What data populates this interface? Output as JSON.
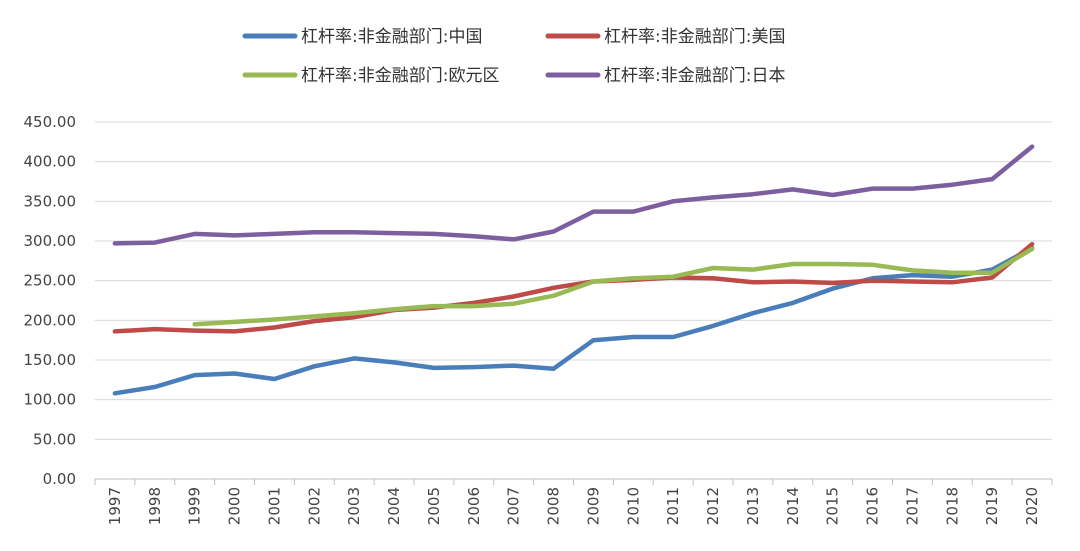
{
  "chart_data": {
    "type": "line",
    "title": "",
    "xlabel": "",
    "ylabel": "",
    "ylim": [
      0,
      450
    ],
    "yticks": [
      "0.00",
      "50.00",
      "100.00",
      "150.00",
      "200.00",
      "250.00",
      "300.00",
      "350.00",
      "400.00",
      "450.00"
    ],
    "grid": "horizontal",
    "legend_position": "top",
    "categories": [
      "1997",
      "1998",
      "1999",
      "2000",
      "2001",
      "2002",
      "2003",
      "2004",
      "2005",
      "2006",
      "2007",
      "2008",
      "2009",
      "2010",
      "2011",
      "2012",
      "2013",
      "2014",
      "2015",
      "2016",
      "2017",
      "2018",
      "2019",
      "2020"
    ],
    "series": [
      {
        "name": "杠杆率:非金融部门:中国",
        "color": "#4a7ebb",
        "values": [
          108,
          116,
          131,
          133,
          126,
          142,
          152,
          147,
          140,
          141,
          143,
          139,
          175,
          179,
          179,
          193,
          209,
          222,
          240,
          253,
          257,
          255,
          264,
          291
        ]
      },
      {
        "name": "杠杆率:非金融部门:美国",
        "color": "#be4b48",
        "values": [
          186,
          189,
          187,
          186,
          191,
          199,
          204,
          213,
          216,
          222,
          230,
          241,
          249,
          251,
          254,
          253,
          248,
          249,
          247,
          250,
          249,
          248,
          254,
          296
        ]
      },
      {
        "name": "杠杆率:非金融部门:欧元区",
        "color": "#98b954",
        "values": [
          null,
          null,
          195,
          198,
          201,
          205,
          209,
          214,
          218,
          218,
          221,
          231,
          249,
          253,
          255,
          266,
          264,
          271,
          271,
          270,
          263,
          260,
          260,
          290
        ]
      },
      {
        "name": "杠杆率:非金融部门:日本",
        "color": "#7d5fa0",
        "values": [
          297,
          298,
          309,
          307,
          309,
          311,
          311,
          310,
          309,
          306,
          302,
          312,
          337,
          337,
          350,
          355,
          359,
          365,
          358,
          366,
          366,
          371,
          378,
          419
        ]
      }
    ]
  }
}
